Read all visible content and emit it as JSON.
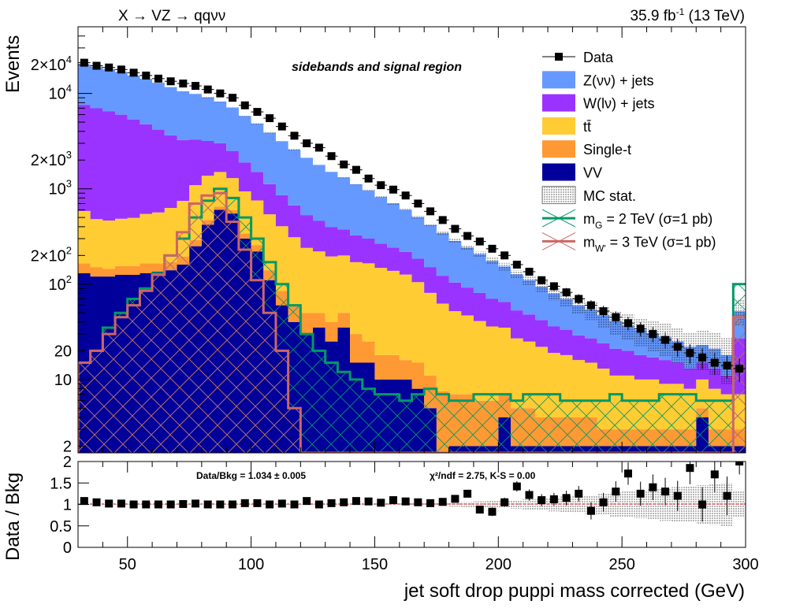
{
  "header": {
    "process": "X → VZ → qqνν",
    "lumi": "35.9 fb",
    "lumi_exp": "-1",
    "energy": "(13 TeV)",
    "region": "sidebands and signal region"
  },
  "chart_data": [
    {
      "type": "stacked-histogram",
      "title": "",
      "xlabel": "jet soft drop puppi mass corrected (GeV)",
      "ylabel": "Events",
      "log_y": true,
      "xlim": [
        30,
        300
      ],
      "ylim": [
        1.7,
        50000
      ],
      "y_tick_labels": [
        {
          "value": 2,
          "label": "2"
        },
        {
          "value": 10,
          "label": "10"
        },
        {
          "value": 20,
          "label": "20"
        },
        {
          "value": 100,
          "label": "10",
          "exp": "2"
        },
        {
          "value": 200,
          "label": "2×10",
          "exp": "2"
        },
        {
          "value": 1000,
          "label": "10",
          "exp": "3"
        },
        {
          "value": 2000,
          "label": "2×10",
          "exp": "3"
        },
        {
          "value": 10000,
          "label": "10",
          "exp": "4"
        },
        {
          "value": 20000,
          "label": "2×10",
          "exp": "4"
        }
      ],
      "x_edges_from_data": true,
      "bin_centers": [
        32.5,
        37.5,
        42.5,
        47.5,
        52.5,
        57.5,
        62.5,
        67.5,
        72.5,
        77.5,
        82.5,
        87.5,
        92.5,
        97.5,
        102.5,
        107.5,
        112.5,
        117.5,
        122.5,
        127.5,
        132.5,
        137.5,
        142.5,
        147.5,
        152.5,
        157.5,
        162.5,
        167.5,
        172.5,
        177.5,
        182.5,
        187.5,
        192.5,
        197.5,
        202.5,
        207.5,
        212.5,
        217.5,
        222.5,
        227.5,
        232.5,
        237.5,
        242.5,
        247.5,
        252.5,
        257.5,
        262.5,
        267.5,
        272.5,
        277.5,
        282.5,
        287.5,
        292.5,
        297.5
      ],
      "stack": [
        {
          "name": "VV",
          "color": "#02009a",
          "values": [
            130,
            120,
            120,
            125,
            125,
            130,
            135,
            140,
            160,
            250,
            420,
            600,
            550,
            300,
            220,
            110,
            60,
            40,
            30,
            35,
            25,
            35,
            15,
            15,
            10,
            10,
            10,
            8,
            5,
            1.5,
            2,
            2,
            2,
            2,
            4,
            2,
            2,
            2,
            2,
            2,
            2,
            2,
            2,
            2,
            2,
            2,
            2,
            2,
            2,
            2,
            4,
            2,
            2,
            2
          ]
        },
        {
          "name": "Single-t",
          "color": "#ff9933",
          "values": [
            35,
            30,
            25,
            30,
            30,
            35,
            30,
            30,
            35,
            40,
            50,
            50,
            45,
            40,
            35,
            30,
            25,
            20,
            20,
            15,
            15,
            15,
            15,
            10,
            8,
            8,
            6,
            7,
            6,
            6,
            5,
            5,
            4,
            4,
            3,
            3,
            3,
            2,
            2,
            2,
            2,
            2,
            1,
            1,
            1,
            1,
            1,
            1,
            1,
            1,
            1,
            1,
            1,
            1
          ]
        },
        {
          "name": "tt̄",
          "color": "#ffcc33",
          "values": [
            420,
            330,
            320,
            330,
            340,
            380,
            400,
            460,
            550,
            800,
            900,
            850,
            700,
            600,
            500,
            400,
            320,
            250,
            190,
            170,
            155,
            150,
            140,
            140,
            130,
            120,
            110,
            90,
            70,
            55,
            45,
            40,
            35,
            30,
            28,
            22,
            20,
            18,
            15,
            14,
            12,
            11,
            10,
            8,
            8,
            7,
            7,
            6,
            6,
            5,
            5,
            5,
            4,
            4
          ]
        },
        {
          "name": "W(lν) + jets",
          "color": "#9a33ff",
          "values": [
            7000,
            6500,
            6000,
            5500,
            4800,
            4200,
            3600,
            3000,
            2500,
            2200,
            1800,
            1500,
            1200,
            950,
            750,
            580,
            450,
            360,
            290,
            240,
            200,
            175,
            155,
            135,
            118,
            104,
            92,
            80,
            70,
            60,
            52,
            45,
            40,
            34,
            30,
            26,
            23,
            20,
            17,
            15,
            13,
            12,
            11,
            10,
            9,
            8,
            7,
            7,
            6,
            5,
            5,
            5,
            4,
            20
          ]
        },
        {
          "name": "Z(νν) + jets",
          "color": "#6699ff",
          "values": [
            12500,
            12000,
            11400,
            10800,
            10100,
            9400,
            8700,
            8000,
            7300,
            6600,
            5900,
            5200,
            4600,
            3900,
            3300,
            2750,
            2300,
            1900,
            1580,
            1320,
            1110,
            940,
            790,
            660,
            550,
            460,
            385,
            320,
            265,
            220,
            180,
            150,
            125,
            105,
            88,
            74,
            62,
            52,
            44,
            37,
            31,
            27,
            23,
            20,
            17,
            15,
            13,
            12,
            10,
            9,
            8,
            8,
            7,
            25
          ]
        }
      ],
      "stack_total_unc": [
        0.005,
        0.005,
        0.005,
        0.005,
        0.005,
        0.005,
        0.005,
        0.005,
        0.005,
        0.005,
        0.006,
        0.006,
        0.006,
        0.006,
        0.007,
        0.007,
        0.008,
        0.009,
        0.01,
        0.011,
        0.012,
        0.013,
        0.015,
        0.017,
        0.02,
        0.022,
        0.025,
        0.03,
        0.035,
        0.04,
        0.05,
        0.06,
        0.07,
        0.08,
        0.09,
        0.1,
        0.12,
        0.14,
        0.16,
        0.18,
        0.2,
        0.22,
        0.25,
        0.28,
        0.3,
        0.32,
        0.35,
        0.38,
        0.4,
        0.42,
        0.45,
        0.48,
        0.5,
        0.3
      ],
      "data": {
        "name": "Data",
        "values": [
          21000,
          19500,
          18700,
          17800,
          16500,
          15400,
          14300,
          13400,
          12700,
          12000,
          11000,
          10000,
          9000,
          7500,
          6400,
          5500,
          4500,
          3600,
          3000,
          2700,
          2200,
          1800,
          1580,
          1280,
          1090,
          980,
          850,
          700,
          580,
          470,
          380,
          320,
          280,
          235,
          200,
          160,
          135,
          110,
          95,
          82,
          70,
          60,
          52,
          45,
          39,
          34,
          30,
          26,
          22,
          19,
          17,
          15,
          14,
          13
        ]
      },
      "signals": [
        {
          "name": "m_G = 2 TeV (σ=1 pb)",
          "label_main": "m",
          "label_sub": "G",
          "label_rest": " = 2 TeV (σ=1 pb)",
          "color": "#009966",
          "hatch": "x",
          "values": [
            15,
            20,
            35,
            50,
            70,
            90,
            130,
            200,
            300,
            500,
            750,
            1000,
            800,
            500,
            300,
            170,
            100,
            60,
            30,
            20,
            15,
            12,
            10,
            8,
            7,
            7,
            6,
            7,
            8,
            7,
            6,
            6,
            7,
            7,
            7,
            6,
            7,
            7,
            7,
            6,
            6,
            6,
            6,
            7,
            6,
            6,
            6,
            7,
            7,
            7,
            6,
            6,
            6,
            100
          ]
        },
        {
          "name": "m_W' = 3 TeV (σ=1 pb)",
          "label_main": "m",
          "label_sub": "W'",
          "label_rest": " = 3 TeV (σ=1 pb)",
          "color": "#cc6666",
          "hatch": "x",
          "values": [
            15,
            20,
            30,
            45,
            60,
            85,
            125,
            200,
            350,
            700,
            850,
            900,
            450,
            230,
            110,
            50,
            20,
            5,
            1,
            1,
            1,
            1,
            1,
            1,
            1,
            1,
            1,
            1,
            1,
            1,
            1,
            1,
            1,
            1,
            1,
            1,
            1,
            1,
            1,
            1,
            1,
            1,
            1,
            1,
            1,
            1,
            1,
            1,
            1,
            1,
            1,
            1,
            1,
            45
          ]
        }
      ],
      "legend": [
        "Data",
        "Z(νν) + jets",
        "W(lν) + jets",
        "tt̄",
        "Single-t",
        "VV",
        "MC stat.",
        "m_G = 2 TeV (σ=1 pb)",
        "m_W' = 3 TeV (σ=1 pb)"
      ],
      "legend_position": "top-right"
    },
    {
      "type": "ratio",
      "xlabel": "jet soft drop puppi mass corrected (GeV)",
      "ylabel": "Data / Bkg",
      "xlim": [
        30,
        300
      ],
      "ylim": [
        0,
        2
      ],
      "x_ticks": [
        50,
        100,
        150,
        200,
        250,
        300
      ],
      "y_ticks": [
        0,
        0.5,
        1,
        1.5,
        2
      ],
      "y_tick_labels": [
        "0",
        "0.5",
        "1",
        "1.5",
        "2"
      ],
      "annotation_left": "Data/Bkg = 1.034 ± 0.005",
      "annotation_right": "χ²/ndf = 2.75,   K-S = 0.00",
      "values": [
        1.08,
        1.05,
        1.02,
        1.02,
        1.0,
        1.0,
        1.0,
        1.0,
        1.01,
        1.02,
        1.0,
        1.0,
        1.0,
        1.03,
        1.03,
        1.0,
        1.02,
        1.0,
        1.08,
        1.0,
        1.03,
        1.05,
        1.08,
        1.07,
        1.04,
        1.1,
        1.07,
        1.05,
        1.03,
        1.06,
        1.13,
        1.25,
        0.88,
        0.83,
        1.05,
        1.42,
        1.22,
        1.1,
        1.12,
        1.15,
        1.25,
        0.85,
        1.05,
        1.3,
        1.72,
        1.25,
        1.4,
        1.3,
        1.2,
        1.85,
        1.0,
        1.7,
        1.2,
        2.0
      ],
      "errors": [
        0.01,
        0.01,
        0.01,
        0.01,
        0.01,
        0.01,
        0.01,
        0.01,
        0.01,
        0.01,
        0.01,
        0.01,
        0.01,
        0.02,
        0.02,
        0.02,
        0.02,
        0.02,
        0.02,
        0.02,
        0.03,
        0.03,
        0.03,
        0.03,
        0.04,
        0.04,
        0.04,
        0.05,
        0.05,
        0.06,
        0.07,
        0.08,
        0.09,
        0.1,
        0.11,
        0.12,
        0.13,
        0.14,
        0.15,
        0.17,
        0.18,
        0.2,
        0.22,
        0.24,
        0.26,
        0.28,
        0.3,
        0.32,
        0.35,
        0.38,
        0.4,
        0.42,
        0.45,
        0.3
      ]
    }
  ]
}
